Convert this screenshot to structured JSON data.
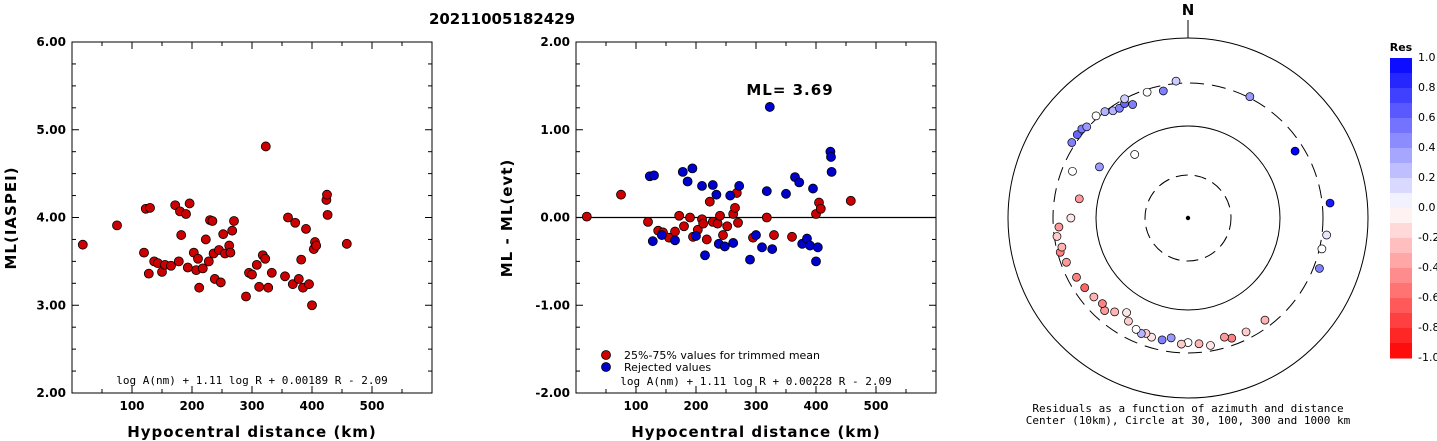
{
  "title": "20211005182429",
  "colors": {
    "red": "#cc0000",
    "blue": "#0000cc",
    "black": "#000000"
  },
  "chart_data": [
    {
      "type": "scatter",
      "xlabel": "Hypocentral distance (km)",
      "ylabel": "ML(IASPEI)",
      "xlim": [
        0,
        600
      ],
      "ylim": [
        2.0,
        6.0
      ],
      "xticks": [
        "100",
        "200",
        "300",
        "400",
        "500"
      ],
      "yticks": [
        "2.00",
        "3.00",
        "4.00",
        "5.00",
        "6.00"
      ],
      "formula": "log A(nm) + 1.11 log R + 0.00189 R - 2.09",
      "series": [
        {
          "color": "red",
          "points": [
            [
              18,
              3.69
            ],
            [
              75,
              3.91
            ],
            [
              123,
              4.1
            ],
            [
              128,
              3.36
            ],
            [
              130,
              4.11
            ],
            [
              120,
              3.6
            ],
            [
              137,
              3.5
            ],
            [
              143,
              3.48
            ],
            [
              150,
              3.38
            ],
            [
              155,
              3.46
            ],
            [
              165,
              3.45
            ],
            [
              172,
              4.14
            ],
            [
              178,
              3.5
            ],
            [
              180,
              4.07
            ],
            [
              182,
              3.8
            ],
            [
              190,
              4.04
            ],
            [
              193,
              3.43
            ],
            [
              196,
              4.16
            ],
            [
              203,
              3.6
            ],
            [
              207,
              3.4
            ],
            [
              210,
              3.53
            ],
            [
              212,
              3.2
            ],
            [
              218,
              3.42
            ],
            [
              223,
              3.75
            ],
            [
              228,
              3.5
            ],
            [
              230,
              3.97
            ],
            [
              234,
              3.96
            ],
            [
              236,
              3.59
            ],
            [
              238,
              3.3
            ],
            [
              245,
              3.63
            ],
            [
              248,
              3.26
            ],
            [
              252,
              3.81
            ],
            [
              255,
              3.59
            ],
            [
              262,
              3.68
            ],
            [
              264,
              3.6
            ],
            [
              267,
              3.85
            ],
            [
              270,
              3.96
            ],
            [
              290,
              3.1
            ],
            [
              295,
              3.37
            ],
            [
              300,
              3.35
            ],
            [
              308,
              3.46
            ],
            [
              312,
              3.21
            ],
            [
              318,
              3.57
            ],
            [
              322,
              3.53
            ],
            [
              323,
              4.81
            ],
            [
              327,
              3.2
            ],
            [
              333,
              3.37
            ],
            [
              355,
              3.33
            ],
            [
              360,
              4.0
            ],
            [
              368,
              3.24
            ],
            [
              372,
              3.94
            ],
            [
              378,
              3.3
            ],
            [
              382,
              3.52
            ],
            [
              385,
              3.2
            ],
            [
              390,
              3.87
            ],
            [
              395,
              3.24
            ],
            [
              400,
              3.0
            ],
            [
              403,
              3.64
            ],
            [
              405,
              3.72
            ],
            [
              407,
              3.68
            ],
            [
              424,
              4.2
            ],
            [
              425,
              4.26
            ],
            [
              426,
              4.03
            ],
            [
              458,
              3.7
            ]
          ]
        }
      ]
    },
    {
      "type": "scatter",
      "xlabel": "Hypocentral distance (km)",
      "ylabel": "ML - ML(evt)",
      "xlim": [
        0,
        600
      ],
      "ylim": [
        -2.0,
        2.0
      ],
      "xticks": [
        "100",
        "200",
        "300",
        "400",
        "500"
      ],
      "yticks": [
        "-2.00",
        "-1.00",
        "0.00",
        "1.00",
        "2.00"
      ],
      "annotation": "ML= 3.69",
      "formula": "log A(nm) + 1.11 log R + 0.00228 R - 2.09",
      "legend": [
        {
          "label": "25%-75% values for trimmed mean",
          "color": "red"
        },
        {
          "label": "Rejected values",
          "color": "blue"
        }
      ],
      "series": [
        {
          "name": "25%-75% values for trimmed mean",
          "color": "red",
          "points": [
            [
              18,
              0.01
            ],
            [
              75,
              0.26
            ],
            [
              120,
              -0.05
            ],
            [
              137,
              -0.15
            ],
            [
              145,
              -0.17
            ],
            [
              155,
              -0.23
            ],
            [
              165,
              -0.16
            ],
            [
              172,
              0.02
            ],
            [
              180,
              -0.1
            ],
            [
              190,
              0.0
            ],
            [
              195,
              -0.22
            ],
            [
              203,
              -0.14
            ],
            [
              210,
              -0.02
            ],
            [
              212,
              -0.07
            ],
            [
              218,
              -0.25
            ],
            [
              223,
              0.18
            ],
            [
              228,
              -0.05
            ],
            [
              236,
              -0.07
            ],
            [
              240,
              0.02
            ],
            [
              245,
              -0.2
            ],
            [
              252,
              -0.1
            ],
            [
              262,
              0.04
            ],
            [
              265,
              0.11
            ],
            [
              268,
              0.28
            ],
            [
              270,
              -0.06
            ],
            [
              295,
              -0.23
            ],
            [
              318,
              0.0
            ],
            [
              330,
              -0.2
            ],
            [
              360,
              -0.22
            ],
            [
              400,
              0.04
            ],
            [
              405,
              0.17
            ],
            [
              408,
              0.1
            ],
            [
              458,
              0.19
            ]
          ]
        },
        {
          "name": "Rejected values",
          "color": "blue",
          "points": [
            [
              123,
              0.47
            ],
            [
              128,
              -0.27
            ],
            [
              130,
              0.48
            ],
            [
              143,
              -0.2
            ],
            [
              165,
              -0.26
            ],
            [
              178,
              0.52
            ],
            [
              186,
              0.41
            ],
            [
              194,
              0.56
            ],
            [
              200,
              -0.21
            ],
            [
              210,
              0.36
            ],
            [
              215,
              -0.43
            ],
            [
              228,
              0.37
            ],
            [
              234,
              0.26
            ],
            [
              238,
              -0.3
            ],
            [
              248,
              -0.33
            ],
            [
              257,
              0.25
            ],
            [
              262,
              -0.29
            ],
            [
              272,
              0.36
            ],
            [
              290,
              -0.48
            ],
            [
              300,
              -0.2
            ],
            [
              310,
              -0.34
            ],
            [
              318,
              0.3
            ],
            [
              323,
              1.26
            ],
            [
              327,
              -0.36
            ],
            [
              350,
              0.27
            ],
            [
              365,
              0.46
            ],
            [
              372,
              0.4
            ],
            [
              377,
              -0.3
            ],
            [
              385,
              -0.24
            ],
            [
              390,
              -0.32
            ],
            [
              395,
              0.33
            ],
            [
              400,
              -0.5
            ],
            [
              403,
              -0.34
            ],
            [
              424,
              0.75
            ],
            [
              425,
              0.69
            ],
            [
              426,
              0.52
            ]
          ]
        }
      ]
    },
    {
      "type": "scatter",
      "subtype": "polar",
      "north_label": "N",
      "caption_line1": "Residuals as a function of azimuth and distance",
      "caption_line2": "Center (10km), Circle at 30, 100, 300 and 1000 km",
      "colorbar_title": "Res",
      "colorbar_ticks": [
        "1.0",
        "0.8",
        "0.6",
        "0.4",
        "0.2",
        "0.0",
        "-0.2",
        "-0.4",
        "-0.6",
        "-0.8",
        "-1.0"
      ],
      "points": [
        {
          "az": 303,
          "dist": 330,
          "res": 0.5
        },
        {
          "az": 307,
          "dist": 330,
          "res": 0.6
        },
        {
          "az": 310,
          "dist": 330,
          "res": 0.5
        },
        {
          "az": 312,
          "dist": 310,
          "res": 0.4
        },
        {
          "az": 318,
          "dist": 320,
          "res": 0.0
        },
        {
          "az": 322,
          "dist": 300,
          "res": 0.3
        },
        {
          "az": 325,
          "dist": 270,
          "res": 0.3
        },
        {
          "az": 328,
          "dist": 260,
          "res": 0.5
        },
        {
          "az": 331,
          "dist": 270,
          "res": 0.6
        },
        {
          "az": 332,
          "dist": 300,
          "res": 0.2
        },
        {
          "az": 334,
          "dist": 240,
          "res": 0.5
        },
        {
          "az": 342,
          "dist": 280,
          "res": 0.0
        },
        {
          "az": 349,
          "dist": 260,
          "res": 0.5
        },
        {
          "az": 355,
          "dist": 320,
          "res": 0.2
        },
        {
          "az": 27,
          "dist": 310,
          "res": 0.4
        },
        {
          "az": 58,
          "dist": 240,
          "res": 1.0
        },
        {
          "az": 84,
          "dist": 370,
          "res": 0.9
        },
        {
          "az": 97,
          "dist": 340,
          "res": 0.1
        },
        {
          "az": 103,
          "dist": 320,
          "res": 0.0
        },
        {
          "az": 111,
          "dist": 350,
          "res": 0.5
        },
        {
          "az": 143,
          "dist": 250,
          "res": -0.3
        },
        {
          "az": 153,
          "dist": 250,
          "res": -0.2
        },
        {
          "az": 160,
          "dist": 250,
          "res": -0.5
        },
        {
          "az": 163,
          "dist": 230,
          "res": -0.4
        },
        {
          "az": 170,
          "dist": 260,
          "res": -0.1
        },
        {
          "az": 175,
          "dist": 240,
          "res": -0.3
        },
        {
          "az": 180,
          "dist": 230,
          "res": 0.0
        },
        {
          "az": 183,
          "dist": 240,
          "res": -0.2
        },
        {
          "az": 188,
          "dist": 210,
          "res": 0.4
        },
        {
          "az": 192,
          "dist": 230,
          "res": 0.5
        },
        {
          "az": 197,
          "dist": 230,
          "res": -0.1
        },
        {
          "az": 200,
          "dist": 220,
          "res": -0.2
        },
        {
          "az": 202,
          "dist": 230,
          "res": 0.3
        },
        {
          "az": 205,
          "dist": 220,
          "res": 0.0
        },
        {
          "az": 210,
          "dist": 200,
          "res": -0.2
        },
        {
          "az": 213,
          "dist": 170,
          "res": -0.1
        },
        {
          "az": 218,
          "dist": 200,
          "res": -0.3
        },
        {
          "az": 222,
          "dist": 230,
          "res": -0.4
        },
        {
          "az": 225,
          "dist": 210,
          "res": -0.5
        },
        {
          "az": 230,
          "dist": 220,
          "res": -0.3
        },
        {
          "az": 236,
          "dist": 230,
          "res": -0.6
        },
        {
          "az": 242,
          "dist": 240,
          "res": -0.5
        },
        {
          "az": 250,
          "dist": 260,
          "res": -0.4
        },
        {
          "az": 255,
          "dist": 280,
          "res": -0.5
        },
        {
          "az": 257,
          "dist": 260,
          "res": -0.3
        },
        {
          "az": 262,
          "dist": 280,
          "res": -0.2
        },
        {
          "az": 266,
          "dist": 260,
          "res": -0.4
        },
        {
          "az": 270,
          "dist": 190,
          "res": -0.1
        },
        {
          "az": 280,
          "dist": 160,
          "res": -0.4
        },
        {
          "az": 292,
          "dist": 230,
          "res": 0.0
        },
        {
          "az": 300,
          "dist": 130,
          "res": 0.4
        },
        {
          "az": 320,
          "dist": 80,
          "res": 0.0
        }
      ]
    }
  ]
}
